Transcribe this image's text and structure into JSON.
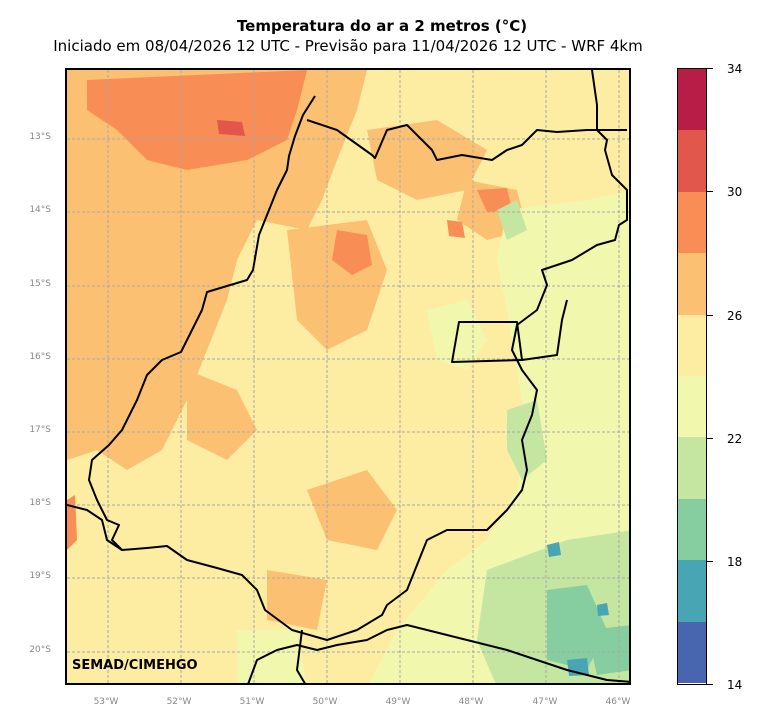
{
  "header": {
    "title": "Temperatura do ar a 2 metros (°C)",
    "subtitle": "Iniciado em 08/04/2026 12 UTC - Previsão para 11/04/2026 12 UTC - WRF 4km"
  },
  "map": {
    "lat_labels": [
      "13°S",
      "14°S",
      "15°S",
      "16°S",
      "17°S",
      "18°S",
      "19°S",
      "20°S"
    ],
    "lon_labels": [
      "53°W",
      "52°W",
      "51°W",
      "50°W",
      "49°W",
      "48°W",
      "47°W",
      "46°W"
    ],
    "credit": "SEMAD/CIMEHGO",
    "gridlines": true
  },
  "colorbar": {
    "tick_labels": [
      "34",
      "30",
      "26",
      "22",
      "18",
      "14"
    ],
    "colors": [
      "#b81d47",
      "#e1574b",
      "#f88d55",
      "#fcc073",
      "#fdeda2",
      "#f2f7ae",
      "#c5e6a0",
      "#86ce9f",
      "#48a5b3",
      "#4865b0"
    ]
  }
}
